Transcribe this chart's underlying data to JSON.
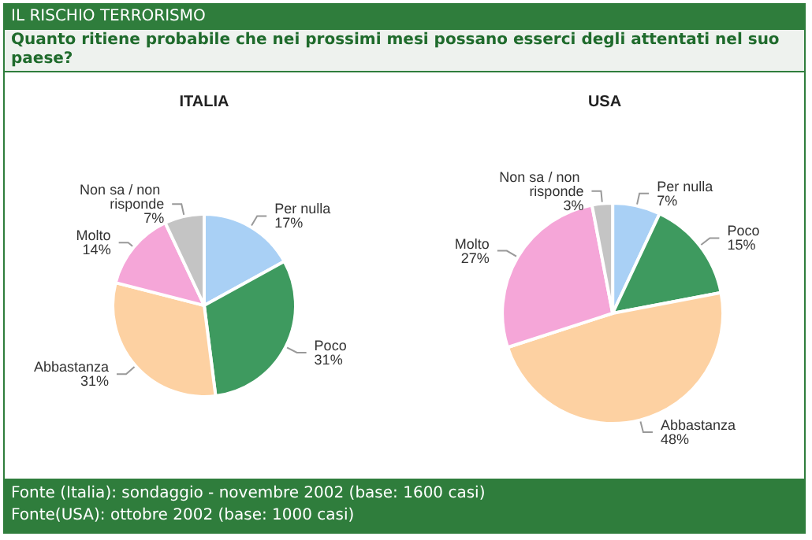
{
  "chart_data": [
    {
      "type": "pie",
      "title": "ITALIA",
      "categories": [
        "Per nulla",
        "Poco",
        "Abbastanza",
        "Molto",
        "Non sa / non risponde"
      ],
      "values": [
        17,
        31,
        31,
        14,
        7
      ],
      "value_labels": [
        "17%",
        "31%",
        "31%",
        "14%",
        "7%"
      ],
      "colors": [
        "#a9d0f5",
        "#3e9a5f",
        "#fdd1a2",
        "#f5a6d8",
        "#c4c4c4"
      ],
      "legend": false,
      "annotations": [
        "IL RISCHIO TERRORISMO",
        "Quanto ritiene probabile che nei prossimi mesi possano esserci degli attentati nel suo paese?",
        "Fonte (Italia): sondaggio - novembre 2002 (base: 1600 casi)"
      ]
    },
    {
      "type": "pie",
      "title": "USA",
      "categories": [
        "Per nulla",
        "Poco",
        "Abbastanza",
        "Molto",
        "Non sa / non risponde"
      ],
      "values": [
        7,
        15,
        48,
        27,
        3
      ],
      "value_labels": [
        "7%",
        "15%",
        "48%",
        "27%",
        "3%"
      ],
      "colors": [
        "#a9d0f5",
        "#3e9a5f",
        "#fdd1a2",
        "#f5a6d8",
        "#c4c4c4"
      ],
      "legend": false,
      "annotations": [
        "Fonte(USA): ottobre 2002 (base: 1000 casi)"
      ]
    }
  ]
}
